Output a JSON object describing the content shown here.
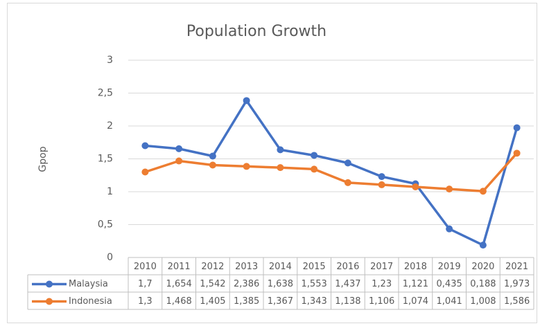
{
  "chart_data": {
    "type": "line",
    "title": "Population Growth",
    "y_label": "Gpop",
    "categories": [
      "2010",
      "2011",
      "2012",
      "2013",
      "2014",
      "2015",
      "2016",
      "2017",
      "2018",
      "2019",
      "2020",
      "2021"
    ],
    "series": [
      {
        "name": "Malaysia",
        "color": "#4472c4",
        "values": [
          1.7,
          1.654,
          1.542,
          2.386,
          1.638,
          1.553,
          1.437,
          1.23,
          1.121,
          0.435,
          0.188,
          1.973
        ],
        "value_labels": [
          "1,7",
          "1,654",
          "1,542",
          "2,386",
          "1,638",
          "1,553",
          "1,437",
          "1,23",
          "1,121",
          "0,435",
          "0,188",
          "1,973"
        ]
      },
      {
        "name": "Indonesia",
        "color": "#ed7d31",
        "values": [
          1.3,
          1.468,
          1.405,
          1.385,
          1.367,
          1.343,
          1.138,
          1.106,
          1.074,
          1.041,
          1.008,
          1.586
        ],
        "value_labels": [
          "1,3",
          "1,468",
          "1,405",
          "1,385",
          "1,367",
          "1,343",
          "1,138",
          "1,106",
          "1,074",
          "1,041",
          "1,008",
          "1,586"
        ]
      }
    ],
    "ylim": [
      0,
      3
    ],
    "yticks": [
      0,
      {
        "value": 0.5,
        "label": "0,5"
      },
      1,
      {
        "value": 1.5,
        "label": "1,5"
      },
      2,
      {
        "value": 2.5,
        "label": "2,5"
      },
      3
    ],
    "grid": true,
    "data_table": true
  }
}
